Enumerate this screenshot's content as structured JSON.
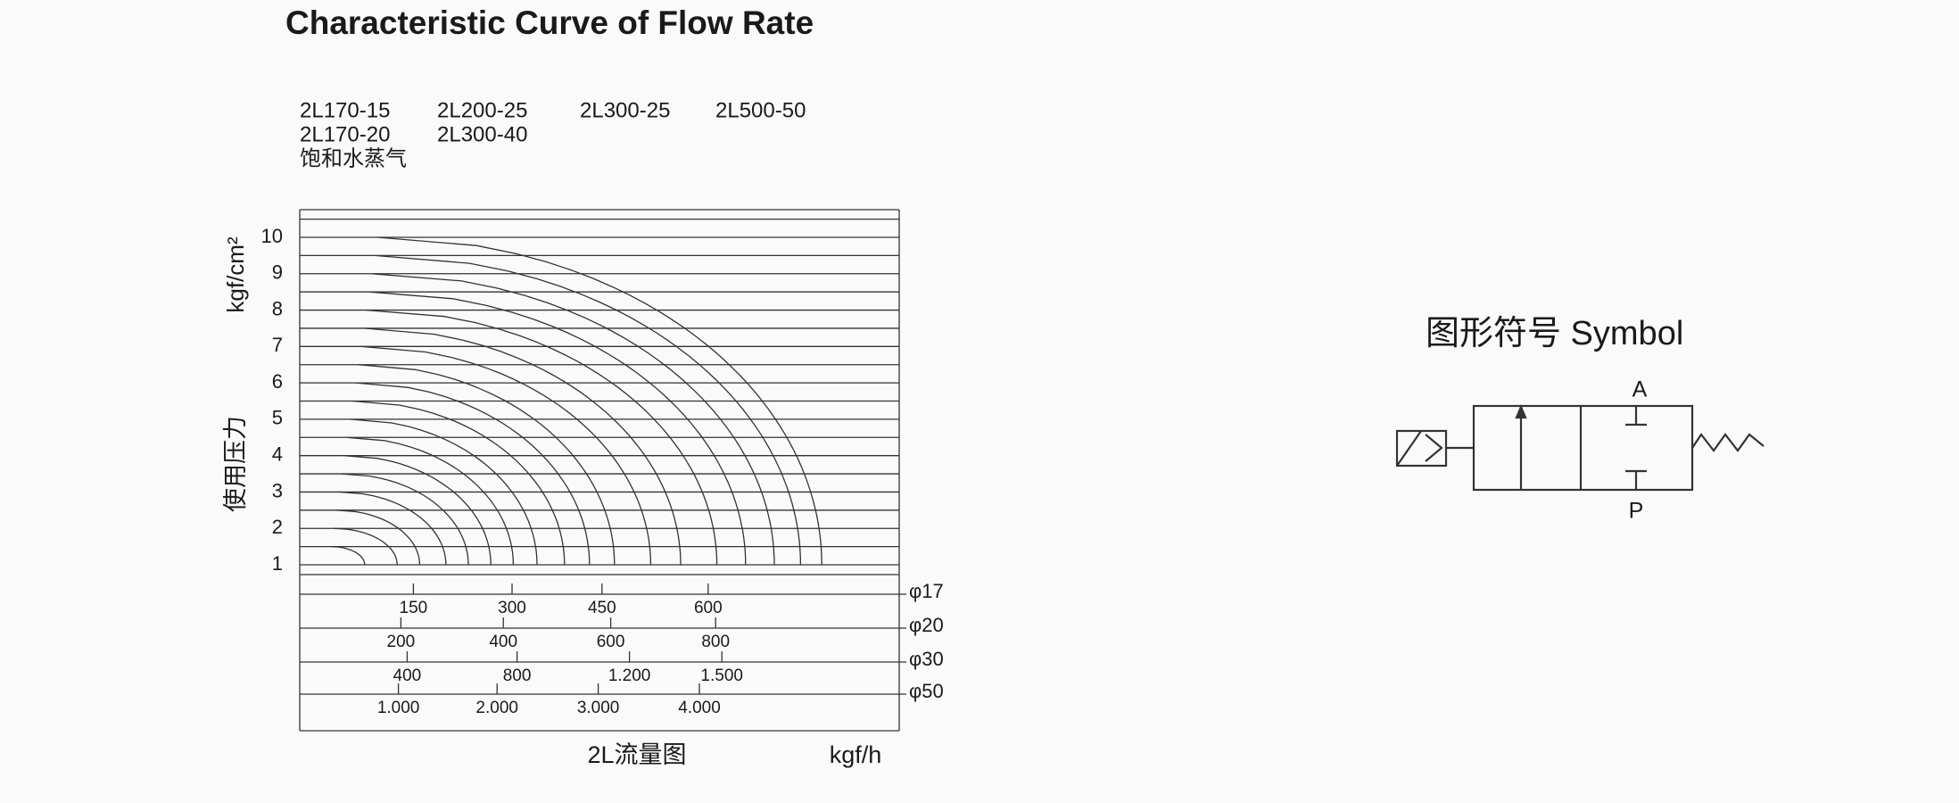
{
  "title": "Characteristic Curve of Flow Rate",
  "legend": [
    [
      "2L170-15",
      "2L200-25",
      "2L300-25",
      "2L500-50"
    ],
    [
      "2L170-20",
      "2L300-40"
    ],
    [
      "饱和水蒸气"
    ]
  ],
  "y_axis": {
    "unit": "kgf/cm²",
    "label": "使用压力",
    "ticks": [
      1,
      2,
      3,
      4,
      5,
      6,
      7,
      8,
      9,
      10
    ]
  },
  "scales": [
    {
      "label": "φ17",
      "ticks": [
        "150",
        "300",
        "450",
        "600"
      ]
    },
    {
      "label": "φ20",
      "ticks": [
        "200",
        "400",
        "600",
        "800"
      ]
    },
    {
      "label": "φ30",
      "ticks": [
        "400",
        "800",
        "1.200",
        "1.500"
      ]
    },
    {
      "label": "φ50",
      "ticks": [
        "1.000",
        "2.000",
        "3.000",
        "4.000"
      ]
    }
  ],
  "x_axis": {
    "label": "2L流量图",
    "unit": "kgf/h"
  },
  "symbol": {
    "title": "图形符号 Symbol",
    "port_a": "A",
    "port_p": "P"
  }
}
